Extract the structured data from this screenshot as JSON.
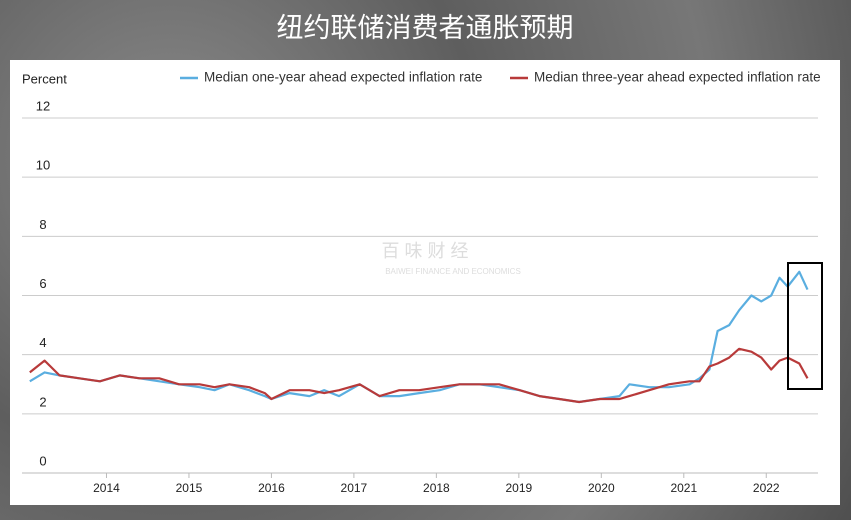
{
  "chart_data": {
    "type": "line",
    "title": "纽约联储消费者通胀预期",
    "y_label": "Percent",
    "watermark": "百 味 财 经",
    "watermark_subtitle": "BAIWEI FINANCE AND ECONOMICS",
    "x": [
      2013.07,
      2013.25,
      2013.43,
      2013.67,
      2013.92,
      2014.16,
      2014.4,
      2014.64,
      2014.88,
      2015.13,
      2015.31,
      2015.49,
      2015.73,
      2015.92,
      2016.0,
      2016.22,
      2016.46,
      2016.64,
      2016.82,
      2017.07,
      2017.31,
      2017.55,
      2017.79,
      2018.04,
      2018.28,
      2018.52,
      2018.76,
      2019.01,
      2019.25,
      2019.49,
      2019.73,
      2019.98,
      2020.22,
      2020.34,
      2020.58,
      2020.82,
      2021.07,
      2021.19,
      2021.31,
      2021.41,
      2021.55,
      2021.67,
      2021.82,
      2021.94,
      2022.06,
      2022.16,
      2022.26,
      2022.4,
      2022.5
    ],
    "series": [
      {
        "name": "Median one-year ahead expected inflation rate",
        "color": "#5aaee0",
        "values": [
          3.1,
          3.4,
          3.3,
          3.2,
          3.1,
          3.3,
          3.2,
          3.1,
          3.0,
          2.9,
          2.8,
          3.0,
          2.8,
          2.6,
          2.5,
          2.7,
          2.6,
          2.8,
          2.6,
          3.0,
          2.6,
          2.6,
          2.7,
          2.8,
          3.0,
          3.0,
          2.9,
          2.8,
          2.6,
          2.5,
          2.4,
          2.5,
          2.6,
          3.0,
          2.9,
          2.9,
          3.0,
          3.2,
          3.5,
          4.8,
          5.0,
          5.5,
          6.0,
          5.8,
          6.0,
          6.6,
          6.3,
          6.8,
          6.2
        ]
      },
      {
        "name": "Median three-year ahead expected inflation rate",
        "color": "#b83a3a",
        "values": [
          3.4,
          3.8,
          3.3,
          3.2,
          3.1,
          3.3,
          3.2,
          3.2,
          3.0,
          3.0,
          2.9,
          3.0,
          2.9,
          2.7,
          2.5,
          2.8,
          2.8,
          2.7,
          2.8,
          3.0,
          2.6,
          2.8,
          2.8,
          2.9,
          3.0,
          3.0,
          3.0,
          2.8,
          2.6,
          2.5,
          2.4,
          2.5,
          2.5,
          2.6,
          2.8,
          3.0,
          3.1,
          3.1,
          3.6,
          3.7,
          3.9,
          4.2,
          4.1,
          3.9,
          3.5,
          3.8,
          3.9,
          3.7,
          3.2
        ]
      }
    ],
    "xlim": [
      2013,
      2022.7
    ],
    "xticks": [
      2014,
      2015,
      2016,
      2017,
      2018,
      2019,
      2020,
      2021,
      2022
    ],
    "ylim": [
      0,
      12
    ],
    "yticks": [
      0,
      2,
      4,
      6,
      8,
      10,
      12
    ],
    "grid": true
  }
}
